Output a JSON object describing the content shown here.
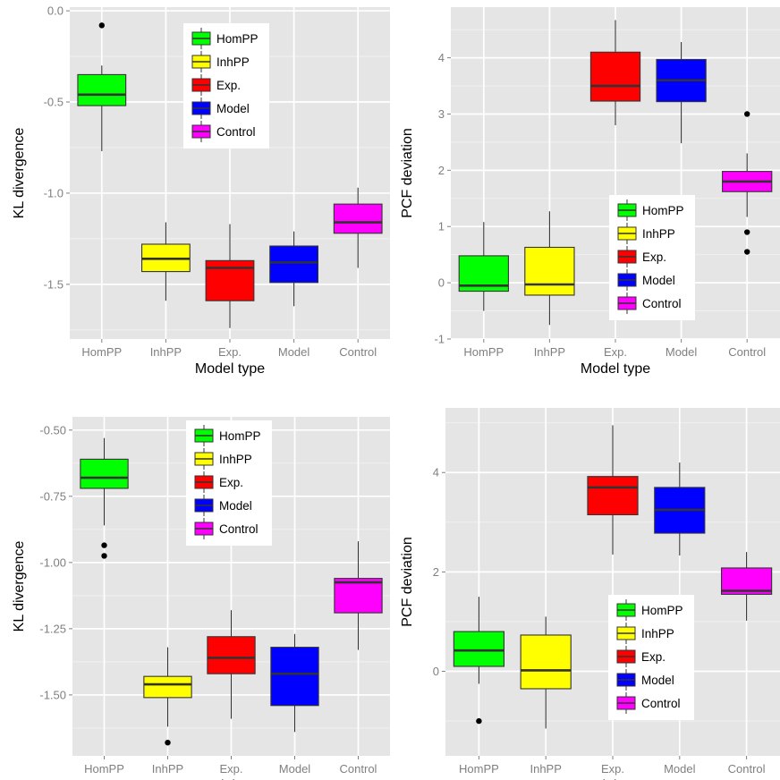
{
  "colors": {
    "panel_bg": "#e5e5e5",
    "grid_major": "#ffffff",
    "grid_minor": "#f2f2f2",
    "box_fill": {
      "HomPP": "#00ff00",
      "InhPP": "#ffff00",
      "Exp.": "#ff0000",
      "Model": "#0000ff",
      "Control": "#ff00ff"
    }
  },
  "chart_data": [
    {
      "type": "boxplot",
      "title": "",
      "xlabel": "Model type",
      "ylabel": "KL divergence",
      "categories": [
        "HomPP",
        "InhPP",
        "Exp.",
        "Model",
        "Control"
      ],
      "ylim": [
        -1.8,
        0.02
      ],
      "yticks": [
        0.0,
        -0.5,
        -1.0,
        -1.5
      ],
      "ytick_labels": [
        "0.0",
        "-0.5",
        "-1.0",
        "-1.5"
      ],
      "legend_position": "top-center",
      "legend_entries": [
        "HomPP",
        "InhPP",
        "Exp.",
        "Model",
        "Control"
      ],
      "boxes": [
        {
          "category": "HomPP",
          "whisker_low": -0.77,
          "q1": -0.52,
          "median": -0.46,
          "q3": -0.35,
          "whisker_high": -0.3,
          "outliers": [
            -0.08
          ]
        },
        {
          "category": "InhPP",
          "whisker_low": -1.59,
          "q1": -1.43,
          "median": -1.36,
          "q3": -1.28,
          "whisker_high": -1.16,
          "outliers": []
        },
        {
          "category": "Exp.",
          "whisker_low": -1.74,
          "q1": -1.59,
          "median": -1.41,
          "q3": -1.37,
          "whisker_high": -1.17,
          "outliers": []
        },
        {
          "category": "Model",
          "whisker_low": -1.62,
          "q1": -1.49,
          "median": -1.38,
          "q3": -1.29,
          "whisker_high": -1.21,
          "outliers": []
        },
        {
          "category": "Control",
          "whisker_low": -1.41,
          "q1": -1.22,
          "median": -1.16,
          "q3": -1.06,
          "whisker_high": -0.97,
          "outliers": []
        }
      ]
    },
    {
      "type": "boxplot",
      "title": "",
      "xlabel": "Model type",
      "ylabel": "PCF deviation",
      "categories": [
        "HomPP",
        "InhPP",
        "Exp.",
        "Model",
        "Control"
      ],
      "ylim": [
        -1.0,
        4.9
      ],
      "yticks": [
        4,
        3,
        2,
        1,
        0,
        -1
      ],
      "ytick_labels": [
        "4",
        "3",
        "2",
        "1",
        "0",
        "-1"
      ],
      "legend_position": "bottom-right",
      "legend_entries": [
        "HomPP",
        "InhPP",
        "Exp.",
        "Model",
        "Control"
      ],
      "boxes": [
        {
          "category": "HomPP",
          "whisker_low": -0.5,
          "q1": -0.15,
          "median": -0.05,
          "q3": 0.48,
          "whisker_high": 1.08,
          "outliers": []
        },
        {
          "category": "InhPP",
          "whisker_low": -0.75,
          "q1": -0.22,
          "median": -0.03,
          "q3": 0.63,
          "whisker_high": 1.27,
          "outliers": []
        },
        {
          "category": "Exp.",
          "whisker_low": 2.8,
          "q1": 3.23,
          "median": 3.5,
          "q3": 4.1,
          "whisker_high": 4.67,
          "outliers": []
        },
        {
          "category": "Model",
          "whisker_low": 2.48,
          "q1": 3.22,
          "median": 3.6,
          "q3": 3.97,
          "whisker_high": 4.28,
          "outliers": []
        },
        {
          "category": "Control",
          "whisker_low": 1.17,
          "q1": 1.62,
          "median": 1.8,
          "q3": 1.98,
          "whisker_high": 2.3,
          "outliers": [
            3.0,
            0.9,
            0.55
          ]
        }
      ]
    },
    {
      "type": "boxplot",
      "title": "",
      "xlabel": "Model type",
      "ylabel": "KL divergence",
      "categories": [
        "HomPP",
        "InhPP",
        "Exp.",
        "Model",
        "Control"
      ],
      "ylim": [
        -1.73,
        -0.45
      ],
      "yticks": [
        -0.5,
        -0.75,
        -1.0,
        -1.25,
        -1.5
      ],
      "ytick_labels": [
        "-0.50",
        "-0.75",
        "-1.00",
        "-1.25",
        "-1.50"
      ],
      "legend_position": "top-center",
      "legend_entries": [
        "HomPP",
        "InhPP",
        "Exp.",
        "Model",
        "Control"
      ],
      "boxes": [
        {
          "category": "HomPP",
          "whisker_low": -0.86,
          "q1": -0.72,
          "median": -0.68,
          "q3": -0.61,
          "whisker_high": -0.53,
          "outliers": [
            -0.935,
            -0.975
          ]
        },
        {
          "category": "InhPP",
          "whisker_low": -1.62,
          "q1": -1.51,
          "median": -1.46,
          "q3": -1.43,
          "whisker_high": -1.32,
          "outliers": [
            -1.68
          ]
        },
        {
          "category": "Exp.",
          "whisker_low": -1.59,
          "q1": -1.42,
          "median": -1.36,
          "q3": -1.28,
          "whisker_high": -1.18,
          "outliers": []
        },
        {
          "category": "Model",
          "whisker_low": -1.64,
          "q1": -1.54,
          "median": -1.42,
          "q3": -1.32,
          "whisker_high": -1.27,
          "outliers": []
        },
        {
          "category": "Control",
          "whisker_low": -1.33,
          "q1": -1.19,
          "median": -1.075,
          "q3": -1.06,
          "whisker_high": -0.92,
          "outliers": []
        }
      ]
    },
    {
      "type": "boxplot",
      "title": "",
      "xlabel": "Model type",
      "ylabel": "PCF deviation",
      "categories": [
        "HomPP",
        "InhPP",
        "Exp.",
        "Model",
        "Control"
      ],
      "ylim": [
        -1.7,
        5.3
      ],
      "yticks": [
        4,
        2,
        0
      ],
      "ytick_labels": [
        "4",
        "2",
        "0"
      ],
      "legend_position": "bottom-center",
      "legend_entries": [
        "HomPP",
        "InhPP",
        "Exp.",
        "Model",
        "Control"
      ],
      "boxes": [
        {
          "category": "HomPP",
          "whisker_low": -0.25,
          "q1": 0.1,
          "median": 0.42,
          "q3": 0.8,
          "whisker_high": 1.5,
          "outliers": [
            -1.0
          ]
        },
        {
          "category": "InhPP",
          "whisker_low": -1.15,
          "q1": -0.35,
          "median": 0.02,
          "q3": 0.73,
          "whisker_high": 1.1,
          "outliers": []
        },
        {
          "category": "Exp.",
          "whisker_low": 2.35,
          "q1": 3.15,
          "median": 3.7,
          "q3": 3.92,
          "whisker_high": 4.95,
          "outliers": []
        },
        {
          "category": "Model",
          "whisker_low": 2.33,
          "q1": 2.78,
          "median": 3.25,
          "q3": 3.7,
          "whisker_high": 4.2,
          "outliers": []
        },
        {
          "category": "Control",
          "whisker_low": 1.02,
          "q1": 1.55,
          "median": 1.62,
          "q3": 2.08,
          "whisker_high": 2.4,
          "outliers": []
        }
      ]
    }
  ]
}
